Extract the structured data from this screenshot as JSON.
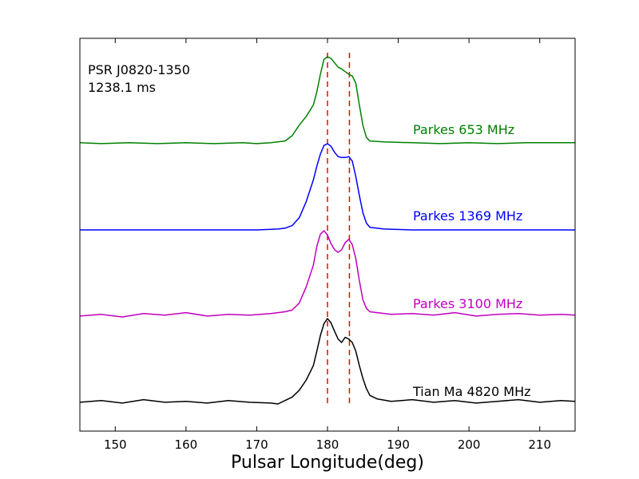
{
  "chart_data": {
    "type": "line",
    "title": "",
    "xlabel": "Pulsar Longitude(deg)",
    "ylabel": "",
    "xlim": [
      145,
      215
    ],
    "xticks": [
      150,
      160,
      170,
      180,
      190,
      200,
      210
    ],
    "yticks_shown": false,
    "grid": false,
    "annotation": [
      "PSR J0820-1350",
      "1238.1 ms"
    ],
    "vlines": [
      180.0,
      183.1
    ],
    "vline_color": "#ff0000",
    "series": [
      {
        "name": "Parkes 653 MHz",
        "color": "#008000",
        "x": [
          145,
          148,
          152,
          156,
          160,
          164,
          168,
          170,
          172,
          174,
          175,
          176,
          177,
          178,
          178.5,
          179,
          179.5,
          180,
          180.5,
          181,
          181.5,
          182,
          182.5,
          183,
          183.5,
          184,
          184.5,
          185,
          185.5,
          186,
          188,
          192,
          196,
          200,
          204,
          208,
          212,
          215
        ],
        "y": [
          0.02,
          0.01,
          0.02,
          0.01,
          0.02,
          0.01,
          0.02,
          0.01,
          0.02,
          0.04,
          0.1,
          0.22,
          0.32,
          0.45,
          0.6,
          0.8,
          0.97,
          1.0,
          0.98,
          0.93,
          0.88,
          0.86,
          0.83,
          0.8,
          0.78,
          0.7,
          0.45,
          0.22,
          0.08,
          0.04,
          0.03,
          0.02,
          0.01,
          0.02,
          0.01,
          0.02,
          0.02,
          0.02
        ]
      },
      {
        "name": "Parkes 1369 MHz",
        "color": "#0000ff",
        "x": [
          145,
          150,
          155,
          160,
          165,
          170,
          173,
          174,
          175,
          176,
          177,
          178,
          178.5,
          179,
          179.5,
          180,
          180.5,
          181,
          181.5,
          182,
          182.5,
          183,
          183.5,
          184,
          184.5,
          185,
          185.5,
          186,
          188,
          192,
          196,
          200,
          205,
          210,
          215
        ],
        "y": [
          0.0,
          0.0,
          0.0,
          0.0,
          0.0,
          0.0,
          0.01,
          0.02,
          0.05,
          0.14,
          0.33,
          0.58,
          0.74,
          0.88,
          0.98,
          1.0,
          0.97,
          0.9,
          0.85,
          0.84,
          0.84,
          0.85,
          0.8,
          0.62,
          0.4,
          0.2,
          0.08,
          0.03,
          0.01,
          0.0,
          0.0,
          0.0,
          0.0,
          0.0,
          0.0
        ]
      },
      {
        "name": "Parkes 3100 MHz",
        "color": "#bf00bf",
        "x": [
          145,
          148,
          151,
          154,
          157,
          160,
          163,
          166,
          169,
          172,
          174,
          175,
          176,
          177,
          178,
          178.5,
          179,
          179.5,
          180,
          180.5,
          181,
          181.5,
          182,
          182.5,
          183,
          183.5,
          184,
          184.5,
          185,
          185.5,
          186,
          189,
          192,
          195,
          198,
          201,
          204,
          207,
          210,
          213,
          215
        ],
        "y": [
          0.01,
          0.03,
          0.0,
          0.04,
          0.02,
          0.05,
          0.01,
          0.03,
          0.02,
          0.04,
          0.06,
          0.08,
          0.16,
          0.35,
          0.6,
          0.82,
          0.96,
          1.0,
          0.95,
          0.85,
          0.78,
          0.75,
          0.78,
          0.86,
          0.9,
          0.84,
          0.68,
          0.42,
          0.2,
          0.1,
          0.06,
          0.03,
          0.04,
          0.02,
          0.05,
          0.01,
          0.03,
          0.04,
          0.02,
          0.03,
          0.02
        ]
      },
      {
        "name": "Tian Ma 4820 MHz",
        "color": "#000000",
        "x": [
          145,
          148,
          151,
          154,
          157,
          160,
          163,
          166,
          169,
          172,
          173,
          174,
          175,
          176,
          177,
          178,
          178.5,
          179,
          179.5,
          180,
          180.5,
          181,
          181.5,
          182,
          182.5,
          183,
          183.5,
          184,
          184.5,
          185,
          185.5,
          186,
          187,
          189,
          192,
          195,
          198,
          201,
          204,
          207,
          210,
          213,
          215
        ],
        "y": [
          0.02,
          0.04,
          0.01,
          0.05,
          0.02,
          0.03,
          0.01,
          0.04,
          0.02,
          0.01,
          0.0,
          0.04,
          0.08,
          0.16,
          0.28,
          0.45,
          0.62,
          0.8,
          0.94,
          1.0,
          0.95,
          0.85,
          0.76,
          0.72,
          0.78,
          0.76,
          0.72,
          0.62,
          0.45,
          0.3,
          0.18,
          0.1,
          0.06,
          0.03,
          0.05,
          0.02,
          0.04,
          0.01,
          0.03,
          0.05,
          0.02,
          0.04,
          0.03
        ]
      }
    ]
  }
}
